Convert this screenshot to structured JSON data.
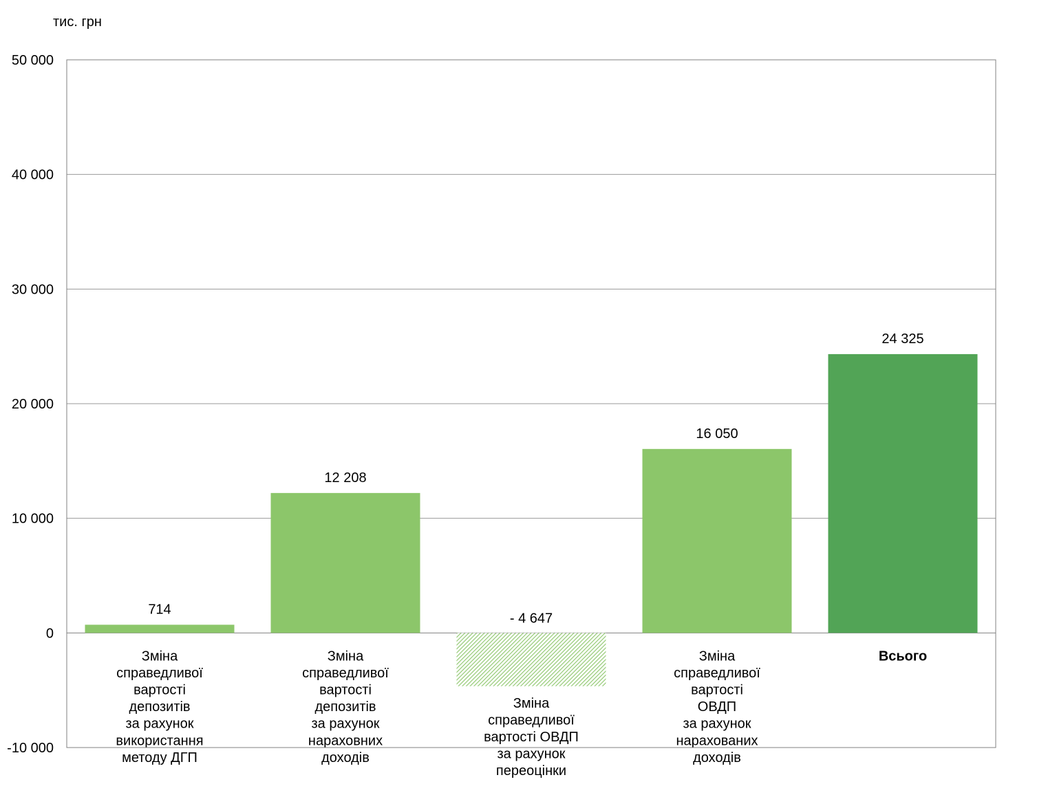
{
  "chart_data": {
    "type": "bar",
    "unit_label": "тис. грн",
    "ylim": [
      -10000,
      50000
    ],
    "y_ticks": [
      50000,
      40000,
      30000,
      20000,
      10000,
      0,
      -10000
    ],
    "y_tick_labels": [
      "50 000",
      "40 000",
      "30 000",
      "20 000",
      "10 000",
      "0",
      "-10 000"
    ],
    "grid": true,
    "categories": [
      [
        "Зміна",
        "справедливої",
        "вартості",
        "депозитів",
        "за рахунок",
        "використання",
        "методу ДГП"
      ],
      [
        "Зміна",
        "справедливої",
        "вартості",
        "депозитів",
        "за рахунок",
        "нараховних",
        "доходів"
      ],
      [
        "Зміна",
        "справедливої",
        "вартості ОВДП",
        "за рахунок",
        "переоцінки"
      ],
      [
        "Зміна",
        "справедливої",
        "вартості",
        "ОВДП",
        "за рахунок",
        "нарахованих",
        "доходів"
      ],
      [
        "Всього"
      ]
    ],
    "values": [
      714,
      12208,
      -4647,
      16050,
      24325
    ],
    "value_labels": [
      "714",
      "12 208",
      "- 4 647",
      "16 050",
      "24 325"
    ],
    "colors": {
      "positive": "#8cc66a",
      "negative_hatch": "#8cc66a",
      "total": "#52a456",
      "grid": "#9a9a9a",
      "axis": "#808080"
    }
  }
}
